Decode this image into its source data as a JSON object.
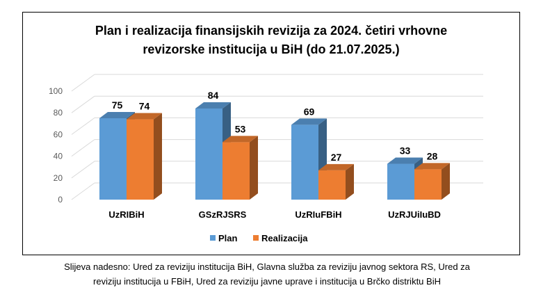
{
  "chart_data": {
    "type": "bar",
    "title_line1": "Plan i realizacija finansijskih revizija za 2024. četiri vrhovne",
    "title_line2": "revizorske institucija u BiH (do 21.07.2025.)",
    "categories": [
      "UzRIBiH",
      "GSzRJSRS",
      "UzRIuFBiH",
      "UzRJUiIuBD"
    ],
    "series": [
      {
        "name": "Plan",
        "values": [
          75,
          84,
          69,
          33
        ],
        "color": "#5B9BD5"
      },
      {
        "name": "Realizacija",
        "values": [
          74,
          53,
          27,
          28
        ],
        "color": "#ED7D31"
      }
    ],
    "ylim": [
      0,
      100
    ],
    "yticks": [
      0,
      20,
      40,
      60,
      80,
      100
    ],
    "grid": true,
    "legend_position": "bottom",
    "style": "3d-clustered-column"
  },
  "caption": {
    "line1": "Slijeva nadesno: Ured za reviziju institucija BiH, Glavna služba za reviziju javnog sektora RS, Ured za",
    "line2": "reviziju institucija u FBiH, Ured za reviziju javne uprave i institucija u Brčko distriktu BiH"
  }
}
